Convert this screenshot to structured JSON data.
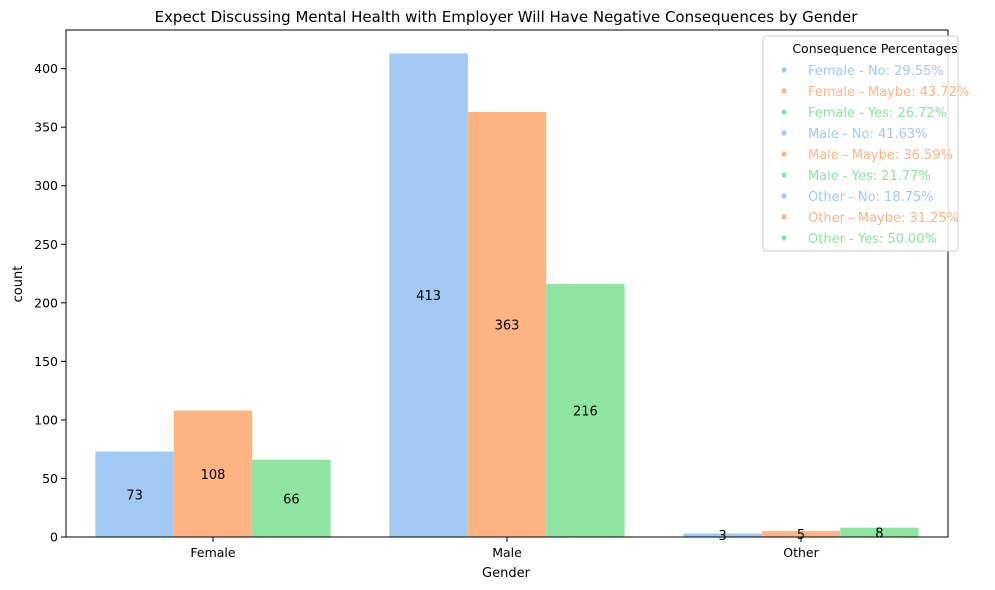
{
  "chart_data": {
    "type": "bar",
    "title": "Expect Discussing Mental Health with Employer Will Have Negative Consequences by Gender",
    "xlabel": "Gender",
    "ylabel": "count",
    "categories": [
      "Female",
      "Male",
      "Other"
    ],
    "ylim": [
      0,
      433
    ],
    "yticks": [
      0,
      50,
      100,
      150,
      200,
      250,
      300,
      350,
      400
    ],
    "grid": false,
    "series": [
      {
        "name": "No",
        "color": "#a1c9f4",
        "values": [
          73,
          413,
          3
        ]
      },
      {
        "name": "Maybe",
        "color": "#ffb482",
        "values": [
          108,
          363,
          5
        ]
      },
      {
        "name": "Yes",
        "color": "#8de5a1",
        "values": [
          66,
          216,
          8
        ]
      }
    ],
    "data_labels": [
      [
        "73",
        "413",
        "3"
      ],
      [
        "108",
        "363",
        "5"
      ],
      [
        "66",
        "216",
        "8"
      ]
    ],
    "legend": {
      "title": "Consequence Percentages",
      "placement": "top-right",
      "entries": [
        {
          "text": "Female - No: 29.55%",
          "color": "#a1c9f4"
        },
        {
          "text": "Female - Maybe: 43.72%",
          "color": "#ffb482"
        },
        {
          "text": "Female - Yes: 26.72%",
          "color": "#8de5a1"
        },
        {
          "text": "Male - No: 41.63%",
          "color": "#a1c9f4"
        },
        {
          "text": "Male - Maybe: 36.59%",
          "color": "#ffb482"
        },
        {
          "text": "Male - Yes: 21.77%",
          "color": "#8de5a1"
        },
        {
          "text": "Other - No: 18.75%",
          "color": "#a1c9f4"
        },
        {
          "text": "Other - Maybe: 31.25%",
          "color": "#ffb482"
        },
        {
          "text": "Other - Yes: 50.00%",
          "color": "#8de5a1"
        }
      ]
    }
  }
}
